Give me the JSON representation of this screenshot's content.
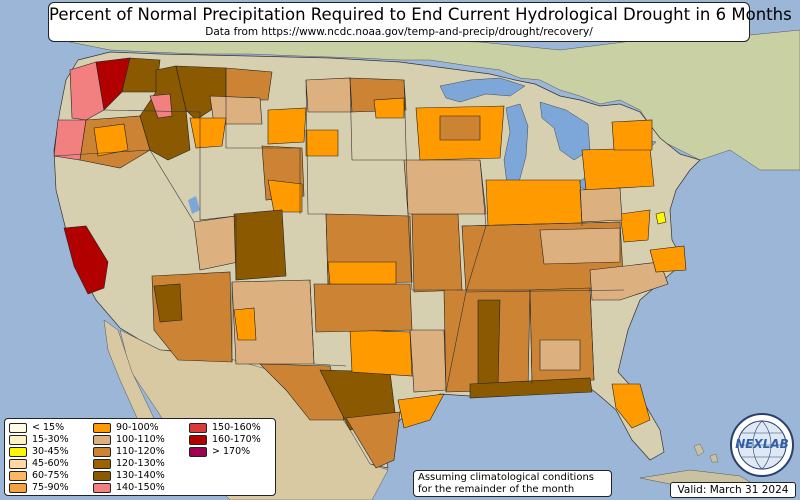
{
  "title": "Percent of Normal Precipitation Required to End Current Hydrological Drought in 6 Months",
  "subtitle": "Data from https://www.ncdc.noaa.gov/temp-and-precip/drought/recovery/",
  "note_line1": "Assuming climatological conditions",
  "note_line2": "for the remainder of the month",
  "valid": "Valid: March 31 2024",
  "logo_text": "NEXLAB",
  "legend": [
    {
      "label": "< 15%",
      "color": "#fffbe6"
    },
    {
      "label": "15-30%",
      "color": "#fff2c2"
    },
    {
      "label": "30-45%",
      "color": "#fff700"
    },
    {
      "label": "45-60%",
      "color": "#ffd9a0"
    },
    {
      "label": "60-75%",
      "color": "#ffb860"
    },
    {
      "label": "75-90%",
      "color": "#f3a240"
    },
    {
      "label": "90-100%",
      "color": "#ff9a00"
    },
    {
      "label": "100-110%",
      "color": "#ddb07f"
    },
    {
      "label": "110-120%",
      "color": "#cc8434"
    },
    {
      "label": "120-130%",
      "color": "#9c6200"
    },
    {
      "label": "130-140%",
      "color": "#8b5a00"
    },
    {
      "label": "140-150%",
      "color": "#f28080"
    },
    {
      "label": "150-160%",
      "color": "#d93a3a"
    },
    {
      "label": "160-170%",
      "color": "#b20000"
    },
    {
      "label": "> 170%",
      "color": "#a00050"
    }
  ],
  "colors": {
    "ocean": "#9cb6d8",
    "lake": "#7da7d9",
    "land": "#d7d0b0",
    "land_light": "#e8e2c4",
    "forest": "#a9bd86",
    "canada": "#c9d1a4",
    "mexico": "#d9c9a2",
    "border": "#000000"
  }
}
